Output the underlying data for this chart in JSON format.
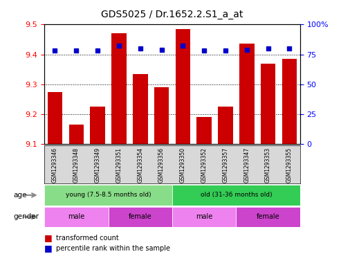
{
  "title": "GDS5025 / Dr.1652.2.S1_a_at",
  "samples": [
    "GSM1293346",
    "GSM1293348",
    "GSM1293349",
    "GSM1293351",
    "GSM1293354",
    "GSM1293356",
    "GSM1293350",
    "GSM1293352",
    "GSM1293357",
    "GSM1293347",
    "GSM1293353",
    "GSM1293355"
  ],
  "bar_values": [
    9.275,
    9.165,
    9.225,
    9.47,
    9.335,
    9.29,
    9.485,
    9.19,
    9.225,
    9.435,
    9.37,
    9.385
  ],
  "percentile_values": [
    78,
    78,
    78,
    82,
    80,
    79,
    82,
    78,
    78,
    79,
    80,
    80
  ],
  "ylim_left": [
    9.1,
    9.5
  ],
  "ylim_right": [
    0,
    100
  ],
  "yticks_left": [
    9.1,
    9.2,
    9.3,
    9.4,
    9.5
  ],
  "yticks_right": [
    0,
    25,
    50,
    75,
    100
  ],
  "bar_color": "#cc0000",
  "percentile_color": "#0000cc",
  "age_groups": [
    {
      "label": "young (7.5-8.5 months old)",
      "start": 0,
      "end": 6,
      "color": "#88dd88"
    },
    {
      "label": "old (31-36 months old)",
      "start": 6,
      "end": 12,
      "color": "#33cc55"
    }
  ],
  "gender_groups": [
    {
      "label": "male",
      "start": 0,
      "end": 3,
      "color": "#ee82ee"
    },
    {
      "label": "female",
      "start": 3,
      "end": 6,
      "color": "#cc44cc"
    },
    {
      "label": "male",
      "start": 6,
      "end": 9,
      "color": "#ee82ee"
    },
    {
      "label": "female",
      "start": 9,
      "end": 12,
      "color": "#cc44cc"
    }
  ],
  "age_label": "age",
  "gender_label": "gender",
  "legend_bar_label": "transformed count",
  "legend_pct_label": "percentile rank within the sample",
  "xtick_bg_color": "#d8d8d8",
  "title_fontsize": 10
}
